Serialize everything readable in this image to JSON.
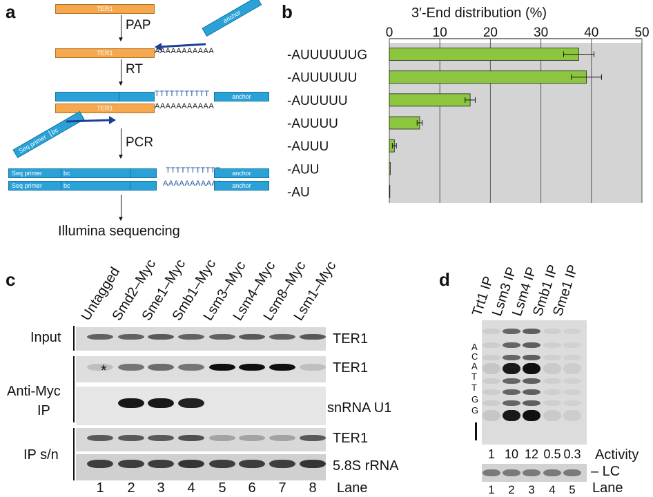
{
  "panel_labels": {
    "a": "a",
    "b": "b",
    "c": "c",
    "d": "d"
  },
  "panel_a": {
    "ter1": "TER1",
    "pap": "PAP",
    "rt": "RT",
    "pcr": "PCR",
    "anchor": "anchor",
    "poly_a": "AAAAAAAAAAA",
    "seq_primer": "Seq primer",
    "bc": "bc",
    "illumina": "Illumina sequencing"
  },
  "chart_data": {
    "type": "bar",
    "title": "3′-End distribution (%)",
    "categories": [
      "-AUUUUUUG",
      "-AUUUUUU",
      "-AUUUUU",
      "-AUUUU",
      "-AUUU",
      "-AUU",
      "-AU"
    ],
    "values": [
      37.5,
      39,
      16,
      6,
      1,
      0.2,
      0.1
    ],
    "errors": [
      3,
      3,
      1,
      0.5,
      0.4,
      0,
      0
    ],
    "xlim": [
      0,
      50
    ],
    "ticks": [
      "0",
      "10",
      "20",
      "30",
      "40",
      "50"
    ],
    "grid": true,
    "bar_color": "#8cc63f",
    "plot_bg": "#d4d4d4"
  },
  "panel_c": {
    "lanes_header": [
      "Untagged",
      "Smd2–Myc",
      "Sme1–Myc",
      "Smb1–Myc",
      "Lsm3–Myc",
      "Lsm4–Myc",
      "Lsm8–Myc",
      "Lsm1–Myc"
    ],
    "row_input": "Input",
    "row_ip1": "Anti-Myc",
    "row_ip2": "IP",
    "row_sn": "IP s/n",
    "asterisk": "*",
    "band_ter1": "TER1",
    "band_u1": "snRNA U1",
    "band_58s": "5.8S rRNA",
    "lane_numbers": [
      "1",
      "2",
      "3",
      "4",
      "5",
      "6",
      "7",
      "8"
    ],
    "lane_word": "Lane"
  },
  "panel_d": {
    "lanes_header": [
      "Trt1 IP",
      "Lsm3 IP",
      "Lsm4 IP",
      "Smb1 IP",
      "Sme1 IP"
    ],
    "sequence": [
      "A",
      "C",
      "A",
      "T",
      "T",
      "G",
      "G"
    ],
    "activity_values": [
      "1",
      "10",
      "12",
      "0.5",
      "0.3"
    ],
    "activity_word": "Activity",
    "lc": "– LC",
    "lane_numbers": [
      "1",
      "2",
      "3",
      "4",
      "5"
    ],
    "lane_word": "Lane"
  }
}
